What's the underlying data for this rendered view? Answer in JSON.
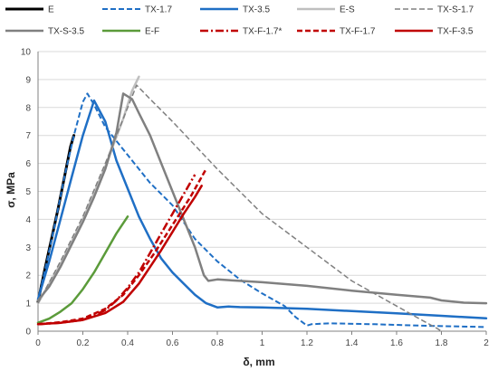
{
  "chart_data": {
    "type": "line",
    "xlabel": "δ, mm",
    "ylabel": "σ, MPa",
    "xlim": [
      0,
      2
    ],
    "ylim": [
      0,
      10
    ],
    "x_ticks": [
      "0",
      "0.2",
      "0.4",
      "0.6",
      "0.8",
      "1",
      "1.2",
      "1.4",
      "1.6",
      "1.8",
      "2"
    ],
    "y_ticks": [
      "0",
      "1",
      "2",
      "3",
      "4",
      "5",
      "6",
      "7",
      "8",
      "9",
      "10"
    ],
    "grid": "horizontal",
    "legend": "top",
    "series": [
      {
        "name": "E",
        "color": "#000000",
        "style": "solid",
        "width": 3,
        "points": [
          [
            0,
            1.05
          ],
          [
            0.03,
            2.2
          ],
          [
            0.06,
            3.3
          ],
          [
            0.09,
            4.4
          ],
          [
            0.12,
            5.6
          ],
          [
            0.145,
            6.6
          ],
          [
            0.16,
            7.0
          ]
        ]
      },
      {
        "name": "TX-1.7",
        "color": "#1f6fc5",
        "style": "dashed",
        "width": 2,
        "points": [
          [
            0,
            1.1
          ],
          [
            0.04,
            2.5
          ],
          [
            0.08,
            4.0
          ],
          [
            0.12,
            5.6
          ],
          [
            0.16,
            7.0
          ],
          [
            0.2,
            8.2
          ],
          [
            0.22,
            8.5
          ],
          [
            0.25,
            8.1
          ],
          [
            0.3,
            7.3
          ],
          [
            0.4,
            6.3
          ],
          [
            0.5,
            5.3
          ],
          [
            0.6,
            4.5
          ],
          [
            0.7,
            3.3
          ],
          [
            0.8,
            2.5
          ],
          [
            0.9,
            1.85
          ],
          [
            1.0,
            1.35
          ],
          [
            1.1,
            0.9
          ],
          [
            1.15,
            0.5
          ],
          [
            1.2,
            0.2
          ],
          [
            1.22,
            0.25
          ],
          [
            1.3,
            0.28
          ],
          [
            1.5,
            0.25
          ],
          [
            1.7,
            0.2
          ],
          [
            1.8,
            0.18
          ],
          [
            2.0,
            0.15
          ]
        ]
      },
      {
        "name": "TX-3.5",
        "color": "#1f6fc5",
        "style": "solid",
        "width": 2.5,
        "points": [
          [
            0,
            1.15
          ],
          [
            0.05,
            2.5
          ],
          [
            0.1,
            4.0
          ],
          [
            0.15,
            5.5
          ],
          [
            0.2,
            7.0
          ],
          [
            0.25,
            8.25
          ],
          [
            0.3,
            7.5
          ],
          [
            0.35,
            6.1
          ],
          [
            0.4,
            5.1
          ],
          [
            0.45,
            4.1
          ],
          [
            0.5,
            3.3
          ],
          [
            0.55,
            2.6
          ],
          [
            0.6,
            2.1
          ],
          [
            0.65,
            1.7
          ],
          [
            0.7,
            1.3
          ],
          [
            0.75,
            1.0
          ],
          [
            0.8,
            0.85
          ],
          [
            0.85,
            0.88
          ],
          [
            0.9,
            0.86
          ],
          [
            1.0,
            0.85
          ],
          [
            1.2,
            0.8
          ],
          [
            1.4,
            0.72
          ],
          [
            1.6,
            0.64
          ],
          [
            1.8,
            0.55
          ],
          [
            2.0,
            0.46
          ]
        ]
      },
      {
        "name": "E-S",
        "color": "#bfbfbf",
        "style": "solid",
        "width": 2.5,
        "points": [
          [
            0,
            1.0
          ],
          [
            0.1,
            2.4
          ],
          [
            0.2,
            4.0
          ],
          [
            0.3,
            5.9
          ],
          [
            0.38,
            7.6
          ],
          [
            0.42,
            8.6
          ],
          [
            0.45,
            9.1
          ]
        ]
      },
      {
        "name": "TX-S-1.7",
        "color": "#808080",
        "style": "dashed",
        "width": 1.5,
        "points": [
          [
            0,
            1.0
          ],
          [
            0.1,
            2.5
          ],
          [
            0.2,
            4.1
          ],
          [
            0.3,
            6.0
          ],
          [
            0.38,
            7.6
          ],
          [
            0.44,
            8.8
          ],
          [
            0.5,
            8.3
          ],
          [
            0.6,
            7.5
          ],
          [
            0.8,
            5.8
          ],
          [
            1.0,
            4.2
          ],
          [
            1.2,
            3.0
          ],
          [
            1.4,
            1.8
          ],
          [
            1.6,
            0.9
          ],
          [
            1.7,
            0.45
          ],
          [
            1.78,
            0.1
          ],
          [
            1.8,
            0
          ]
        ]
      },
      {
        "name": "TX-S-3.5",
        "color": "#808080",
        "style": "solid",
        "width": 2.5,
        "points": [
          [
            0,
            1.1
          ],
          [
            0.05,
            1.6
          ],
          [
            0.1,
            2.3
          ],
          [
            0.15,
            3.1
          ],
          [
            0.2,
            3.9
          ],
          [
            0.25,
            4.8
          ],
          [
            0.3,
            5.8
          ],
          [
            0.35,
            7.1
          ],
          [
            0.38,
            8.5
          ],
          [
            0.42,
            8.3
          ],
          [
            0.45,
            7.8
          ],
          [
            0.5,
            7.0
          ],
          [
            0.55,
            6.0
          ],
          [
            0.6,
            5.0
          ],
          [
            0.65,
            4.0
          ],
          [
            0.7,
            3.0
          ],
          [
            0.74,
            2.0
          ],
          [
            0.76,
            1.8
          ],
          [
            0.8,
            1.85
          ],
          [
            0.9,
            1.8
          ],
          [
            1.0,
            1.75
          ],
          [
            1.2,
            1.62
          ],
          [
            1.4,
            1.45
          ],
          [
            1.6,
            1.3
          ],
          [
            1.75,
            1.2
          ],
          [
            1.8,
            1.1
          ],
          [
            1.9,
            1.02
          ],
          [
            2.0,
            1.0
          ]
        ]
      },
      {
        "name": "E-F",
        "color": "#5b9b3a",
        "style": "solid",
        "width": 2.5,
        "points": [
          [
            0,
            0.3
          ],
          [
            0.05,
            0.45
          ],
          [
            0.1,
            0.7
          ],
          [
            0.15,
            1.0
          ],
          [
            0.2,
            1.5
          ],
          [
            0.25,
            2.1
          ],
          [
            0.3,
            2.8
          ],
          [
            0.35,
            3.5
          ],
          [
            0.4,
            4.1
          ]
        ]
      },
      {
        "name": "TX-F-1.7*",
        "color": "#c00000",
        "style": "dashdot",
        "width": 2.5,
        "points": [
          [
            0,
            0.25
          ],
          [
            0.1,
            0.3
          ],
          [
            0.2,
            0.4
          ],
          [
            0.3,
            0.75
          ],
          [
            0.35,
            1.1
          ],
          [
            0.4,
            1.55
          ],
          [
            0.45,
            2.1
          ],
          [
            0.5,
            2.8
          ],
          [
            0.55,
            3.5
          ],
          [
            0.6,
            4.2
          ],
          [
            0.65,
            4.9
          ],
          [
            0.7,
            5.6
          ]
        ]
      },
      {
        "name": "TX-F-1.7",
        "color": "#c00000",
        "style": "dashed",
        "width": 2.5,
        "points": [
          [
            0,
            0.25
          ],
          [
            0.1,
            0.32
          ],
          [
            0.2,
            0.45
          ],
          [
            0.3,
            0.8
          ],
          [
            0.38,
            1.3
          ],
          [
            0.45,
            2.0
          ],
          [
            0.52,
            2.8
          ],
          [
            0.6,
            3.8
          ],
          [
            0.68,
            4.8
          ],
          [
            0.75,
            5.8
          ]
        ]
      },
      {
        "name": "TX-F-3.5",
        "color": "#c00000",
        "style": "solid",
        "width": 2.5,
        "points": [
          [
            0,
            0.25
          ],
          [
            0.1,
            0.3
          ],
          [
            0.2,
            0.4
          ],
          [
            0.3,
            0.65
          ],
          [
            0.38,
            1.05
          ],
          [
            0.45,
            1.7
          ],
          [
            0.5,
            2.3
          ],
          [
            0.55,
            2.9
          ],
          [
            0.6,
            3.55
          ],
          [
            0.65,
            4.2
          ],
          [
            0.7,
            4.8
          ],
          [
            0.73,
            5.2
          ]
        ]
      }
    ]
  }
}
